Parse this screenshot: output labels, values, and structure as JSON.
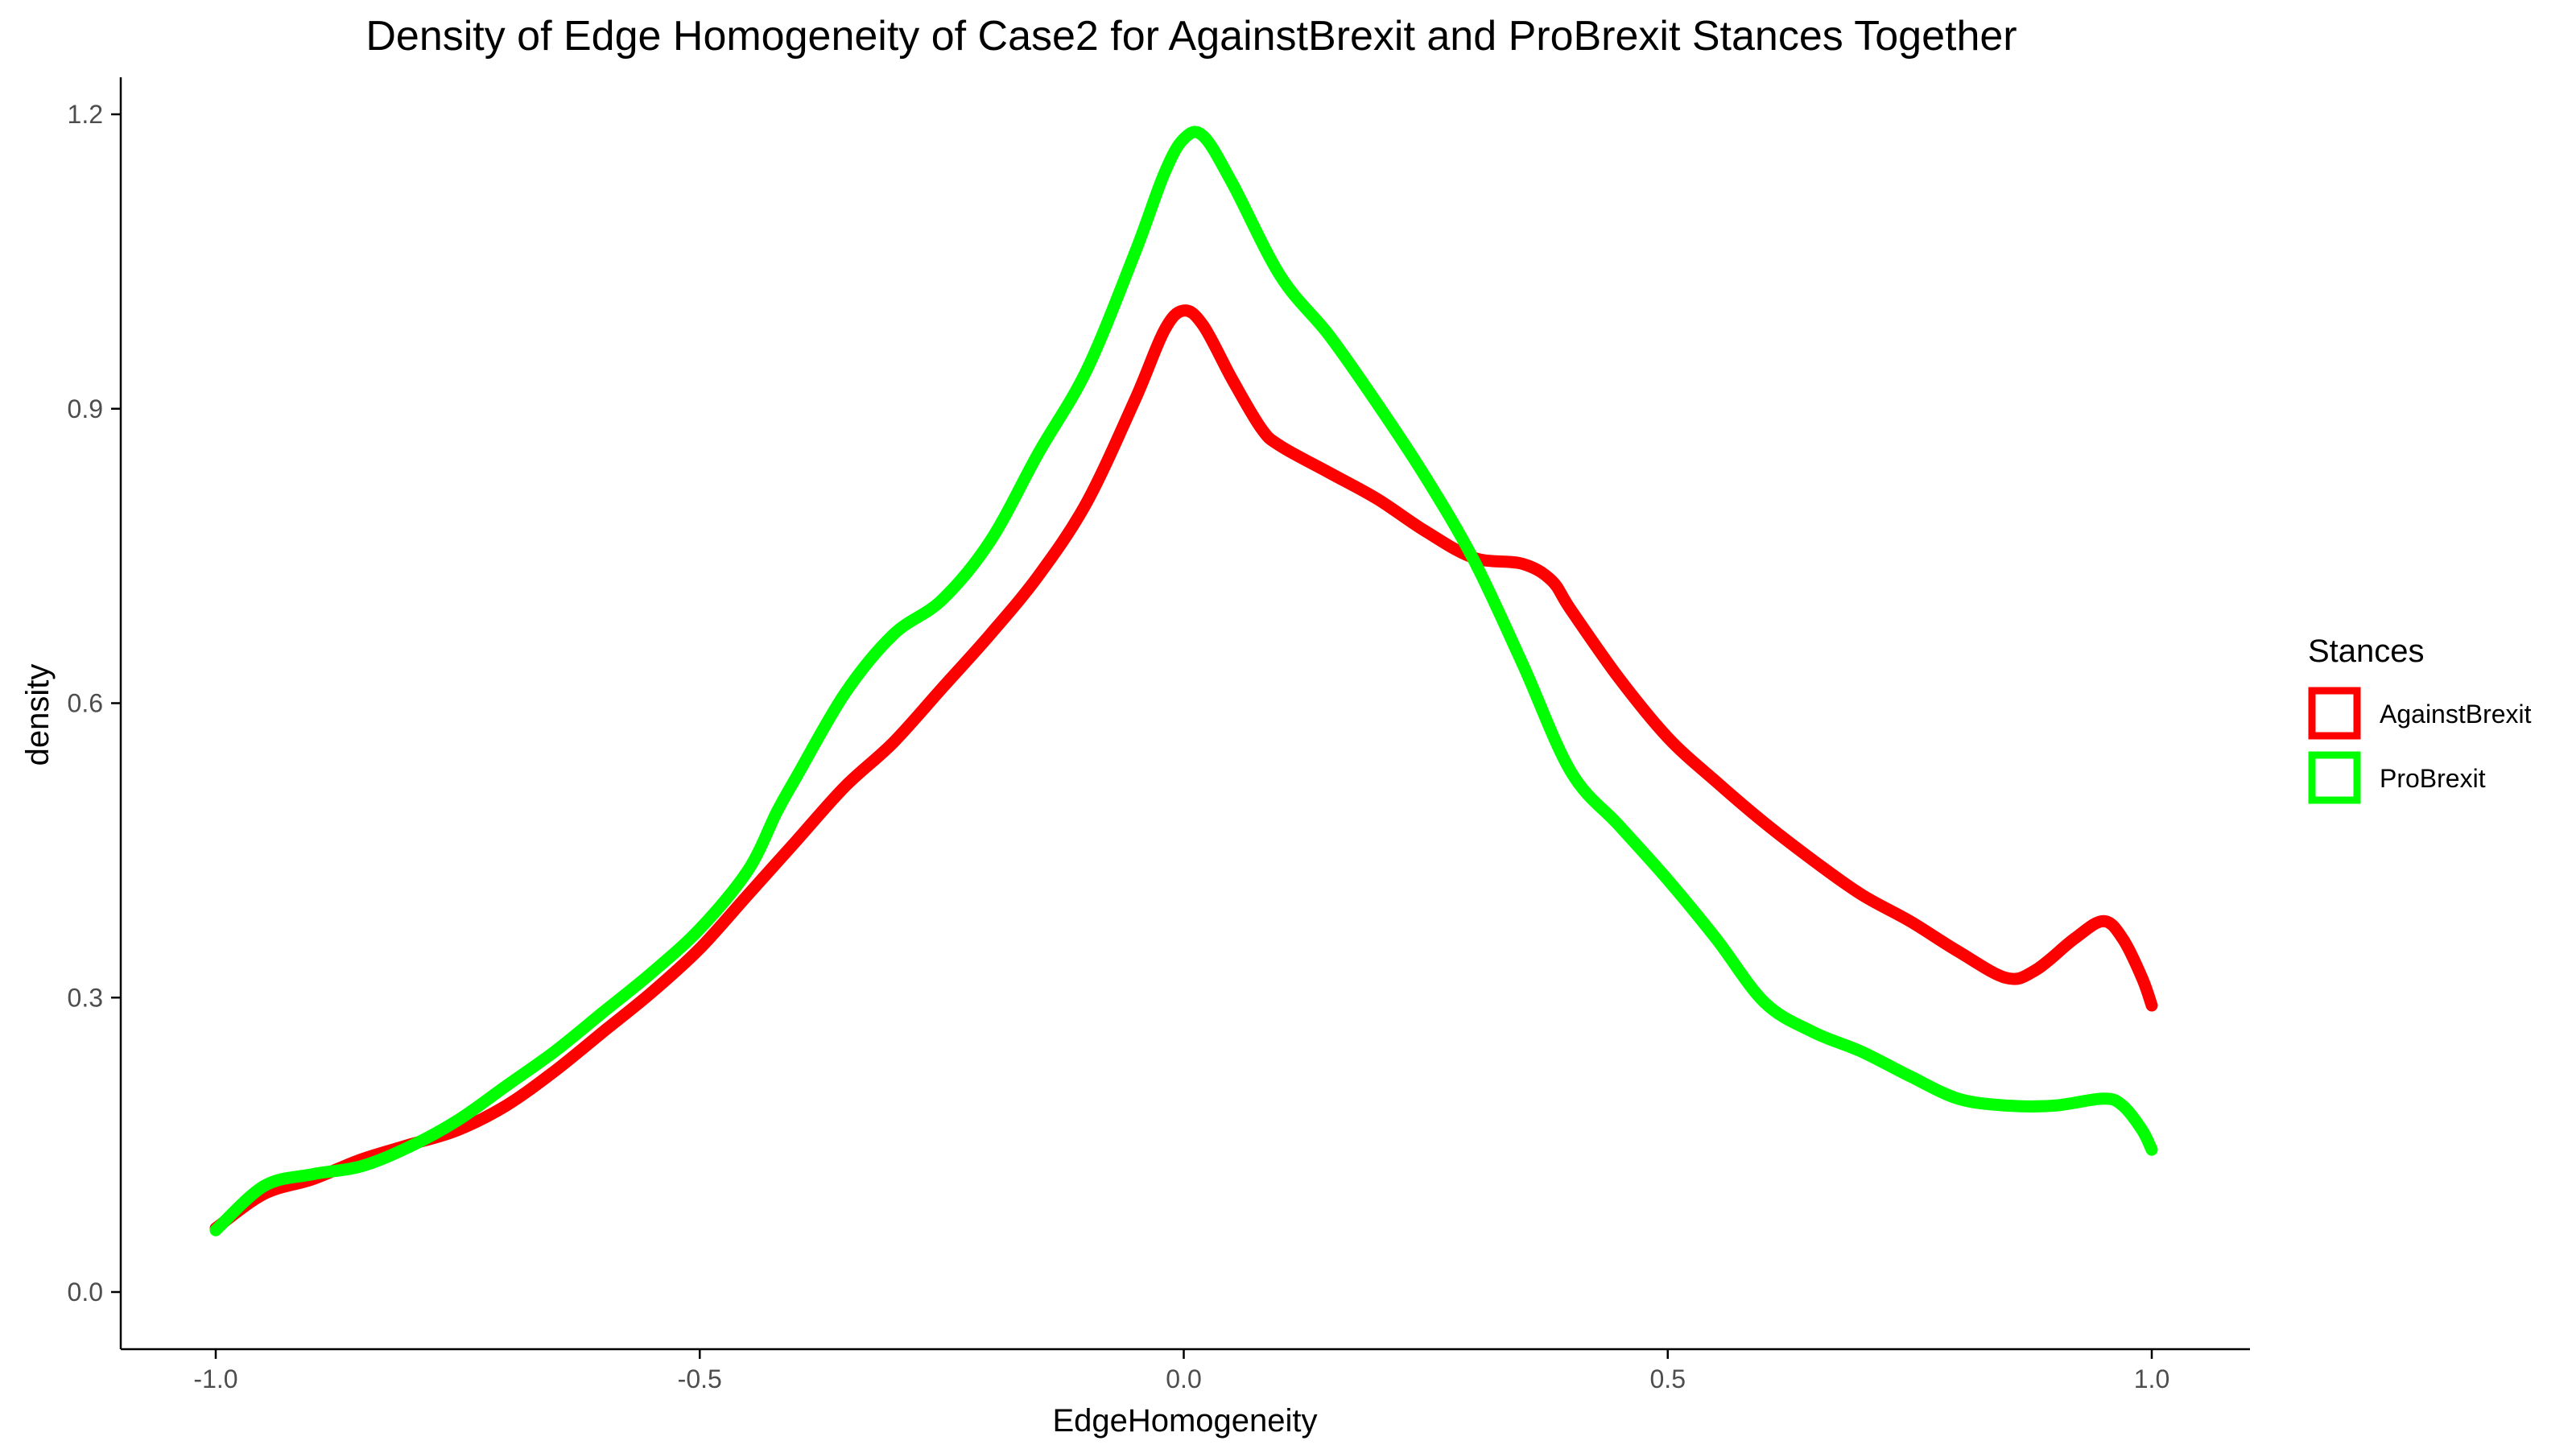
{
  "chart_data": {
    "type": "line",
    "title": "Density of Edge Homogeneity of Case2 for AgainstBrexit and ProBrexit  Stances Together",
    "xlabel": "EdgeHomogeneity",
    "ylabel": "density",
    "xlim": [
      -1.0,
      1.0
    ],
    "ylim": [
      0.0,
      1.2
    ],
    "x_ticks": [
      -1.0,
      -0.5,
      0.0,
      0.5,
      1.0
    ],
    "x_tick_labels": [
      "-1.0",
      "-0.5",
      "0.0",
      "0.5",
      "1.0"
    ],
    "y_ticks": [
      0.0,
      0.3,
      0.6,
      0.9,
      1.2
    ],
    "y_tick_labels": [
      "0.0",
      "0.3",
      "0.6",
      "0.9",
      "1.2"
    ],
    "grid": false,
    "legend": {
      "title": "Stances",
      "position": "right"
    },
    "series": [
      {
        "name": "AgainstBrexit",
        "color": "#ff0000",
        "x": [
          -1.0,
          -0.95,
          -0.9,
          -0.85,
          -0.8,
          -0.75,
          -0.7,
          -0.65,
          -0.6,
          -0.55,
          -0.5,
          -0.45,
          -0.4,
          -0.35,
          -0.3,
          -0.25,
          -0.2,
          -0.15,
          -0.1,
          -0.05,
          -0.02,
          0.0,
          0.02,
          0.05,
          0.08,
          0.1,
          0.15,
          0.2,
          0.25,
          0.3,
          0.35,
          0.38,
          0.4,
          0.45,
          0.5,
          0.55,
          0.6,
          0.65,
          0.7,
          0.75,
          0.8,
          0.85,
          0.88,
          0.92,
          0.95,
          0.97,
          0.99,
          1.0
        ],
        "values": [
          0.065,
          0.1,
          0.115,
          0.135,
          0.15,
          0.165,
          0.19,
          0.225,
          0.265,
          0.305,
          0.35,
          0.405,
          0.46,
          0.515,
          0.56,
          0.615,
          0.67,
          0.73,
          0.805,
          0.91,
          0.98,
          1.0,
          0.985,
          0.93,
          0.88,
          0.862,
          0.835,
          0.808,
          0.775,
          0.748,
          0.742,
          0.725,
          0.695,
          0.625,
          0.565,
          0.52,
          0.478,
          0.44,
          0.405,
          0.378,
          0.347,
          0.32,
          0.328,
          0.36,
          0.378,
          0.36,
          0.32,
          0.292
        ]
      },
      {
        "name": "ProBrexit",
        "color": "#00ff00",
        "x": [
          -1.0,
          -0.95,
          -0.9,
          -0.85,
          -0.8,
          -0.75,
          -0.7,
          -0.65,
          -0.6,
          -0.55,
          -0.5,
          -0.45,
          -0.42,
          -0.4,
          -0.35,
          -0.3,
          -0.25,
          -0.2,
          -0.15,
          -0.1,
          -0.05,
          -0.02,
          0.0,
          0.02,
          0.05,
          0.1,
          0.15,
          0.2,
          0.25,
          0.3,
          0.35,
          0.4,
          0.45,
          0.5,
          0.55,
          0.6,
          0.65,
          0.7,
          0.75,
          0.8,
          0.85,
          0.9,
          0.95,
          0.97,
          0.99,
          1.0
        ],
        "values": [
          0.063,
          0.108,
          0.12,
          0.128,
          0.148,
          0.175,
          0.21,
          0.245,
          0.285,
          0.325,
          0.37,
          0.43,
          0.49,
          0.525,
          0.61,
          0.67,
          0.705,
          0.765,
          0.855,
          0.94,
          1.06,
          1.14,
          1.175,
          1.178,
          1.13,
          1.035,
          0.975,
          0.905,
          0.83,
          0.745,
          0.64,
          0.53,
          0.475,
          0.42,
          0.36,
          0.295,
          0.265,
          0.245,
          0.22,
          0.197,
          0.19,
          0.19,
          0.197,
          0.19,
          0.165,
          0.145
        ]
      }
    ]
  }
}
